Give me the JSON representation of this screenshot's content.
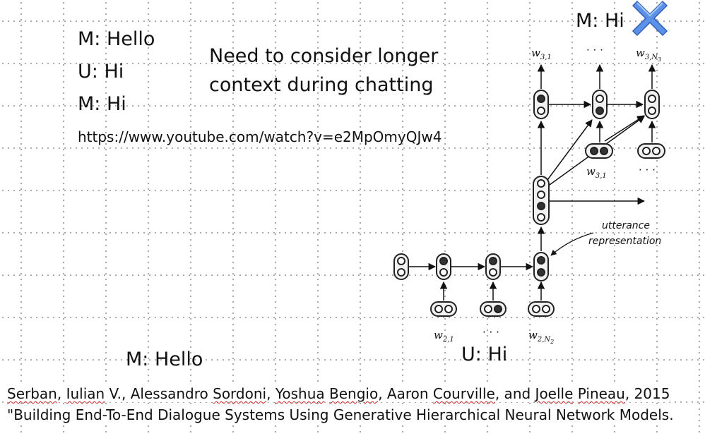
{
  "dialogue_top": {
    "line1": "M: Hello",
    "line2": "U: Hi",
    "line3": "M: Hi"
  },
  "url": "https://www.youtube.com/watch?v=e2MpOmyQJw4",
  "note": {
    "line1": "Need to consider longer",
    "line2": "context during chatting"
  },
  "diagram": {
    "top_label": "M: Hi",
    "out_w31": "w",
    "out_w31_sub": "3,1",
    "out_dots": "· · ·",
    "out_w3n": "w",
    "out_w3n_sub": "3,N",
    "out_w3n_subsub": "3",
    "in_w31": "w",
    "in_w31_sub": "3,1",
    "in_dots": "· · ·",
    "utterance_line1": "utterance",
    "utterance_line2": "representation",
    "bottom_w21": "w",
    "bottom_w21_sub": "2,1",
    "bottom_dots": "· · ·",
    "bottom_w2n": "w",
    "bottom_w2n_sub": "2,N",
    "bottom_w2n_subsub": "2",
    "colors": {
      "cross": "#4a84e0",
      "cell_fill": "#333333"
    }
  },
  "bottom_labels": {
    "machine": "M: Hello",
    "user": "U: Hi"
  },
  "citation": {
    "line1_authors": [
      "Serban",
      ", ",
      "Iulian",
      " V., Alessandro ",
      "Sordoni",
      ", ",
      "Yoshua",
      " ",
      "Bengio",
      ", Aaron ",
      "Courville",
      ", and ",
      "Joelle",
      " ",
      "Pineau",
      ", 2015"
    ],
    "line2": "\"Building End-To-End Dialogue Systems Using Generative Hierarchical Neural Network Models."
  }
}
